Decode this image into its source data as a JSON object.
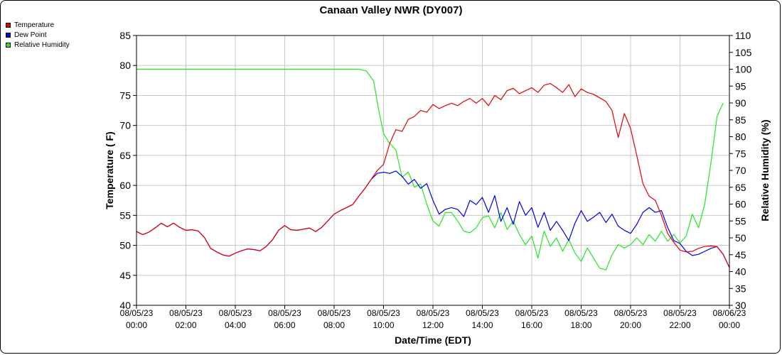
{
  "chart_data": {
    "type": "line",
    "title": "Canaan Valley NWR (DY007)",
    "xlabel": "Date/Time (EDT)",
    "ylabel_left": "Temperature ( F)",
    "ylabel_right": "Relative Humidity (%)",
    "ylim_left": [
      40,
      85
    ],
    "ylim_right": [
      30,
      110
    ],
    "yticks_left": [
      40,
      45,
      50,
      55,
      60,
      65,
      70,
      75,
      80,
      85
    ],
    "yticks_right": [
      30,
      35,
      40,
      45,
      50,
      55,
      60,
      65,
      70,
      75,
      80,
      85,
      90,
      95,
      100,
      105,
      110
    ],
    "xlim_hours": [
      0,
      24
    ],
    "x_ticks": [
      {
        "h": 0,
        "date": "08/05/23",
        "time": "00:00"
      },
      {
        "h": 2,
        "date": "08/05/23",
        "time": "02:00"
      },
      {
        "h": 4,
        "date": "08/05/23",
        "time": "04:00"
      },
      {
        "h": 6,
        "date": "08/05/23",
        "time": "06:00"
      },
      {
        "h": 8,
        "date": "08/05/23",
        "time": "08:00"
      },
      {
        "h": 10,
        "date": "08/05/23",
        "time": "10:00"
      },
      {
        "h": 12,
        "date": "08/05/23",
        "time": "12:00"
      },
      {
        "h": 14,
        "date": "08/05/23",
        "time": "14:00"
      },
      {
        "h": 16,
        "date": "08/05/23",
        "time": "16:00"
      },
      {
        "h": 18,
        "date": "08/05/23",
        "time": "18:00"
      },
      {
        "h": 20,
        "date": "08/05/23",
        "time": "20:00"
      },
      {
        "h": 22,
        "date": "08/05/23",
        "time": "22:00"
      },
      {
        "h": 24,
        "date": "08/06/23",
        "time": "00:00"
      }
    ],
    "grid": true,
    "legend_position": "top-left",
    "series": [
      {
        "name": "Temperature",
        "color": "#e60000",
        "axis": "left",
        "points": [
          [
            0,
            52.3
          ],
          [
            0.25,
            51.8
          ],
          [
            0.5,
            52.2
          ],
          [
            0.75,
            52.9
          ],
          [
            1.0,
            53.7
          ],
          [
            1.25,
            53.1
          ],
          [
            1.5,
            53.7
          ],
          [
            1.75,
            53.0
          ],
          [
            2.0,
            52.5
          ],
          [
            2.25,
            52.6
          ],
          [
            2.5,
            52.4
          ],
          [
            2.75,
            51.3
          ],
          [
            3.0,
            49.5
          ],
          [
            3.25,
            48.9
          ],
          [
            3.5,
            48.4
          ],
          [
            3.75,
            48.2
          ],
          [
            4.0,
            48.7
          ],
          [
            4.25,
            49.1
          ],
          [
            4.5,
            49.4
          ],
          [
            4.75,
            49.3
          ],
          [
            5.0,
            49.1
          ],
          [
            5.25,
            49.8
          ],
          [
            5.5,
            50.9
          ],
          [
            5.75,
            52.5
          ],
          [
            6.0,
            53.3
          ],
          [
            6.25,
            52.6
          ],
          [
            6.5,
            52.5
          ],
          [
            6.75,
            52.7
          ],
          [
            7.0,
            52.9
          ],
          [
            7.25,
            52.3
          ],
          [
            7.5,
            53.0
          ],
          [
            7.75,
            54.1
          ],
          [
            8.0,
            55.2
          ],
          [
            8.25,
            55.8
          ],
          [
            8.5,
            56.3
          ],
          [
            8.75,
            56.8
          ],
          [
            9.0,
            58.2
          ],
          [
            9.25,
            59.5
          ],
          [
            9.5,
            61.0
          ],
          [
            9.75,
            62.5
          ],
          [
            10.0,
            63.5
          ],
          [
            10.25,
            67.0
          ],
          [
            10.5,
            69.3
          ],
          [
            10.75,
            69.0
          ],
          [
            11.0,
            71.0
          ],
          [
            11.25,
            71.5
          ],
          [
            11.5,
            72.5
          ],
          [
            11.75,
            72.2
          ],
          [
            12.0,
            73.5
          ],
          [
            12.25,
            72.8
          ],
          [
            12.5,
            73.3
          ],
          [
            12.75,
            73.7
          ],
          [
            13.0,
            73.3
          ],
          [
            13.25,
            74.0
          ],
          [
            13.5,
            74.5
          ],
          [
            13.75,
            73.7
          ],
          [
            14.0,
            74.5
          ],
          [
            14.25,
            73.3
          ],
          [
            14.5,
            75.0
          ],
          [
            14.75,
            74.3
          ],
          [
            15.0,
            75.8
          ],
          [
            15.25,
            76.2
          ],
          [
            15.5,
            75.3
          ],
          [
            15.75,
            75.8
          ],
          [
            16.0,
            76.3
          ],
          [
            16.25,
            75.5
          ],
          [
            16.5,
            76.7
          ],
          [
            16.75,
            77.0
          ],
          [
            17.0,
            76.3
          ],
          [
            17.25,
            75.5
          ],
          [
            17.5,
            76.8
          ],
          [
            17.75,
            74.8
          ],
          [
            18.0,
            76.1
          ],
          [
            18.25,
            75.5
          ],
          [
            18.5,
            75.2
          ],
          [
            18.75,
            74.6
          ],
          [
            19.0,
            74.0
          ],
          [
            19.25,
            72.5
          ],
          [
            19.5,
            68.0
          ],
          [
            19.75,
            72.0
          ],
          [
            20.0,
            69.5
          ],
          [
            20.25,
            65.0
          ],
          [
            20.5,
            60.3
          ],
          [
            20.75,
            58.2
          ],
          [
            21.0,
            57.5
          ],
          [
            21.25,
            55.0
          ],
          [
            21.5,
            52.0
          ],
          [
            21.75,
            50.5
          ],
          [
            22.0,
            49.2
          ],
          [
            22.25,
            48.9
          ],
          [
            22.5,
            49.0
          ],
          [
            22.75,
            49.5
          ],
          [
            23.0,
            49.8
          ],
          [
            23.25,
            49.9
          ],
          [
            23.5,
            49.8
          ],
          [
            23.75,
            48.5
          ],
          [
            24.0,
            46.3
          ]
        ]
      },
      {
        "name": "Dew Point",
        "color": "#0000e6",
        "axis": "left",
        "points": [
          [
            0,
            52.3
          ],
          [
            0.25,
            51.8
          ],
          [
            0.5,
            52.2
          ],
          [
            0.75,
            52.9
          ],
          [
            1.0,
            53.7
          ],
          [
            1.25,
            53.1
          ],
          [
            1.5,
            53.7
          ],
          [
            1.75,
            53.0
          ],
          [
            2.0,
            52.5
          ],
          [
            2.25,
            52.6
          ],
          [
            2.5,
            52.4
          ],
          [
            2.75,
            51.3
          ],
          [
            3.0,
            49.5
          ],
          [
            3.25,
            48.9
          ],
          [
            3.5,
            48.4
          ],
          [
            3.75,
            48.2
          ],
          [
            4.0,
            48.7
          ],
          [
            4.25,
            49.1
          ],
          [
            4.5,
            49.4
          ],
          [
            4.75,
            49.3
          ],
          [
            5.0,
            49.1
          ],
          [
            5.25,
            49.8
          ],
          [
            5.5,
            50.9
          ],
          [
            5.75,
            52.5
          ],
          [
            6.0,
            53.3
          ],
          [
            6.25,
            52.6
          ],
          [
            6.5,
            52.5
          ],
          [
            6.75,
            52.7
          ],
          [
            7.0,
            52.9
          ],
          [
            7.25,
            52.3
          ],
          [
            7.5,
            53.0
          ],
          [
            7.75,
            54.1
          ],
          [
            8.0,
            55.2
          ],
          [
            8.25,
            55.8
          ],
          [
            8.5,
            56.3
          ],
          [
            8.75,
            56.8
          ],
          [
            9.0,
            58.2
          ],
          [
            9.25,
            59.5
          ],
          [
            9.5,
            61.0
          ],
          [
            9.75,
            62.0
          ],
          [
            10.0,
            62.2
          ],
          [
            10.25,
            62.0
          ],
          [
            10.5,
            62.4
          ],
          [
            10.75,
            61.5
          ],
          [
            11.0,
            60.2
          ],
          [
            11.25,
            61.0
          ],
          [
            11.5,
            59.5
          ],
          [
            11.75,
            60.3
          ],
          [
            12.0,
            57.5
          ],
          [
            12.25,
            55.2
          ],
          [
            12.5,
            56.0
          ],
          [
            12.75,
            56.3
          ],
          [
            13.0,
            56.0
          ],
          [
            13.25,
            54.8
          ],
          [
            13.5,
            57.5
          ],
          [
            13.75,
            56.8
          ],
          [
            14.0,
            58.0
          ],
          [
            14.25,
            55.5
          ],
          [
            14.5,
            58.3
          ],
          [
            14.75,
            54.0
          ],
          [
            15.0,
            56.3
          ],
          [
            15.25,
            53.5
          ],
          [
            15.5,
            57.3
          ],
          [
            15.75,
            55.0
          ],
          [
            16.0,
            56.3
          ],
          [
            16.25,
            53.0
          ],
          [
            16.5,
            55.5
          ],
          [
            16.75,
            52.5
          ],
          [
            17.0,
            54.0
          ],
          [
            17.25,
            52.5
          ],
          [
            17.5,
            50.8
          ],
          [
            17.75,
            53.7
          ],
          [
            18.0,
            55.8
          ],
          [
            18.25,
            54.0
          ],
          [
            18.5,
            54.7
          ],
          [
            18.75,
            55.5
          ],
          [
            19.0,
            53.8
          ],
          [
            19.25,
            55.2
          ],
          [
            19.5,
            53.2
          ],
          [
            19.75,
            52.5
          ],
          [
            20.0,
            52.0
          ],
          [
            20.25,
            53.5
          ],
          [
            20.5,
            55.5
          ],
          [
            20.75,
            56.3
          ],
          [
            21.0,
            55.5
          ],
          [
            21.25,
            55.8
          ],
          [
            21.5,
            53.0
          ],
          [
            21.75,
            50.8
          ],
          [
            22.0,
            50.3
          ],
          [
            22.25,
            49.0
          ],
          [
            22.5,
            48.3
          ],
          [
            22.75,
            48.5
          ],
          [
            23.0,
            49.0
          ],
          [
            23.25,
            49.5
          ],
          [
            23.5,
            49.8
          ],
          [
            23.75,
            48.5
          ],
          [
            24.0,
            46.3
          ]
        ]
      },
      {
        "name": "Relative Humidity",
        "color": "#22e622",
        "axis": "right",
        "points": [
          [
            0,
            100
          ],
          [
            9.0,
            100
          ],
          [
            9.3,
            99.5
          ],
          [
            9.5,
            97.5
          ],
          [
            9.6,
            96.5
          ],
          [
            9.8,
            88
          ],
          [
            10.0,
            81
          ],
          [
            10.2,
            78.5
          ],
          [
            10.5,
            76
          ],
          [
            10.75,
            68
          ],
          [
            11.0,
            69.5
          ],
          [
            11.25,
            65
          ],
          [
            11.5,
            66
          ],
          [
            11.75,
            60
          ],
          [
            12.0,
            55
          ],
          [
            12.25,
            53.5
          ],
          [
            12.5,
            57.5
          ],
          [
            12.75,
            57.5
          ],
          [
            13.0,
            55
          ],
          [
            13.25,
            52
          ],
          [
            13.5,
            51.5
          ],
          [
            13.75,
            53
          ],
          [
            14.0,
            56
          ],
          [
            14.25,
            56.5
          ],
          [
            14.5,
            53
          ],
          [
            14.75,
            57.5
          ],
          [
            15.0,
            52.5
          ],
          [
            15.25,
            55
          ],
          [
            15.5,
            51
          ],
          [
            15.75,
            48
          ],
          [
            16.0,
            50.5
          ],
          [
            16.25,
            44
          ],
          [
            16.5,
            52
          ],
          [
            16.75,
            47.5
          ],
          [
            17.0,
            50
          ],
          [
            17.25,
            46
          ],
          [
            17.5,
            49.5
          ],
          [
            17.75,
            45.5
          ],
          [
            18.0,
            43
          ],
          [
            18.25,
            47
          ],
          [
            18.5,
            44
          ],
          [
            18.75,
            41
          ],
          [
            19.0,
            40.5
          ],
          [
            19.25,
            45
          ],
          [
            19.5,
            48
          ],
          [
            19.75,
            47
          ],
          [
            20.0,
            48
          ],
          [
            20.25,
            50
          ],
          [
            20.5,
            48
          ],
          [
            20.75,
            51
          ],
          [
            21.0,
            49
          ],
          [
            21.25,
            52
          ],
          [
            21.5,
            49
          ],
          [
            21.75,
            51
          ],
          [
            22.0,
            48.5
          ],
          [
            22.25,
            50.5
          ],
          [
            22.5,
            57
          ],
          [
            22.75,
            53
          ],
          [
            23.0,
            60
          ],
          [
            23.25,
            72
          ],
          [
            23.5,
            86
          ],
          [
            23.75,
            90
          ]
        ]
      }
    ]
  }
}
